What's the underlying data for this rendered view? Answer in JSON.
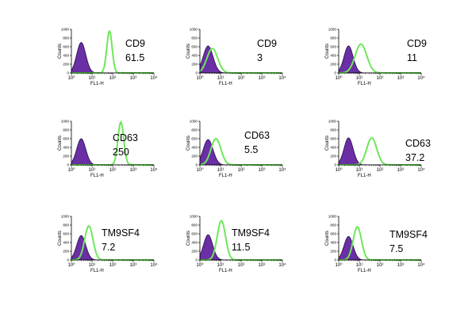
{
  "colors": {
    "isotype_fill": "#6a2fa4",
    "isotype_stroke": "#2a0d4a",
    "marker_line": "#6ee85a",
    "axis": "#000000"
  },
  "axis_text": {
    "ylabel": "Counts",
    "xlabel": "FL1-H"
  },
  "chart_data": [
    {
      "type": "histogram",
      "marker": "CD9",
      "value": "61.5",
      "x_scale": "log",
      "xlim": [
        1,
        10000
      ],
      "ylim": [
        0,
        1000
      ],
      "x_ticks": [
        "10⁰",
        "10¹",
        "10²",
        "10³",
        "10⁴"
      ],
      "y_ticks": [
        "0",
        "200",
        "400",
        "600",
        "800",
        "1000"
      ],
      "xlabel": "FL1-H",
      "ylabel": "Counts",
      "iso_peak": 3,
      "iso_height": 0.7,
      "iso_sigma": 0.22,
      "marker_peak": 70,
      "marker_height": 0.96,
      "marker_sigma": 0.13
    },
    {
      "type": "histogram",
      "marker": "CD9",
      "value": "3",
      "x_scale": "log",
      "xlim": [
        1,
        10000
      ],
      "ylim": [
        0,
        1000
      ],
      "x_ticks": [
        "10⁰",
        "10¹",
        "10²",
        "10³",
        "10⁴"
      ],
      "y_ticks": [
        "0",
        "200",
        "400",
        "600",
        "800",
        "1000"
      ],
      "xlabel": "FL1-H",
      "ylabel": "Counts",
      "iso_peak": 2.5,
      "iso_height": 0.62,
      "iso_sigma": 0.24,
      "marker_peak": 4,
      "marker_height": 0.56,
      "marker_sigma": 0.26
    },
    {
      "type": "histogram",
      "marker": "CD9",
      "value": "11",
      "x_scale": "log",
      "xlim": [
        1,
        10000
      ],
      "ylim": [
        0,
        1000
      ],
      "x_ticks": [
        "10⁰",
        "10¹",
        "10²",
        "10³",
        "10⁴"
      ],
      "y_ticks": [
        "0",
        "200",
        "400",
        "600",
        "800",
        "1000"
      ],
      "xlabel": "FL1-H",
      "ylabel": "Counts",
      "iso_peak": 3,
      "iso_height": 0.62,
      "iso_sigma": 0.22,
      "marker_peak": 12,
      "marker_height": 0.66,
      "marker_sigma": 0.28
    },
    {
      "type": "histogram",
      "marker": "CD63",
      "value": "250",
      "x_scale": "log",
      "xlim": [
        1,
        10000
      ],
      "ylim": [
        0,
        1000
      ],
      "x_ticks": [
        "10⁰",
        "10¹",
        "10²",
        "10³",
        "10⁴"
      ],
      "y_ticks": [
        "0",
        "200",
        "400",
        "600",
        "800",
        "1000"
      ],
      "xlabel": "FL1-H",
      "ylabel": "Counts",
      "iso_peak": 3,
      "iso_height": 0.6,
      "iso_sigma": 0.22,
      "marker_peak": 250,
      "marker_height": 0.98,
      "marker_sigma": 0.14
    },
    {
      "type": "histogram",
      "marker": "CD63",
      "value": "5.5",
      "x_scale": "log",
      "xlim": [
        1,
        10000
      ],
      "ylim": [
        0,
        1000
      ],
      "x_ticks": [
        "10⁰",
        "10¹",
        "10²",
        "10³",
        "10⁴"
      ],
      "y_ticks": [
        "0",
        "200",
        "400",
        "600",
        "800",
        "1000"
      ],
      "xlabel": "FL1-H",
      "ylabel": "Counts",
      "iso_peak": 2.5,
      "iso_height": 0.58,
      "iso_sigma": 0.24,
      "marker_peak": 6,
      "marker_height": 0.6,
      "marker_sigma": 0.24
    },
    {
      "type": "histogram",
      "marker": "CD63",
      "value": "37.2",
      "x_scale": "log",
      "xlim": [
        1,
        10000
      ],
      "ylim": [
        0,
        1000
      ],
      "x_ticks": [
        "10⁰",
        "10¹",
        "10²",
        "10³",
        "10⁴"
      ],
      "y_ticks": [
        "0",
        "200",
        "400",
        "600",
        "800",
        "1000"
      ],
      "xlabel": "FL1-H",
      "ylabel": "Counts",
      "iso_peak": 3,
      "iso_height": 0.62,
      "iso_sigma": 0.22,
      "marker_peak": 40,
      "marker_height": 0.62,
      "marker_sigma": 0.24
    },
    {
      "type": "histogram",
      "marker": "TM9SF4",
      "value": "7.2",
      "x_scale": "log",
      "xlim": [
        1,
        10000
      ],
      "ylim": [
        0,
        1000
      ],
      "x_ticks": [
        "10⁰",
        "10¹",
        "10²",
        "10³",
        "10⁴"
      ],
      "y_ticks": [
        "0",
        "200",
        "400",
        "600",
        "800",
        "1000"
      ],
      "xlabel": "FL1-H",
      "ylabel": "Counts",
      "iso_peak": 3,
      "iso_height": 0.56,
      "iso_sigma": 0.22,
      "marker_peak": 7,
      "marker_height": 0.78,
      "marker_sigma": 0.2
    },
    {
      "type": "histogram",
      "marker": "TM9SF4",
      "value": "11.5",
      "x_scale": "log",
      "xlim": [
        1,
        10000
      ],
      "ylim": [
        0,
        1000
      ],
      "x_ticks": [
        "10⁰",
        "10¹",
        "10²",
        "10³",
        "10⁴"
      ],
      "y_ticks": [
        "0",
        "200",
        "400",
        "600",
        "800",
        "1000"
      ],
      "xlabel": "FL1-H",
      "ylabel": "Counts",
      "iso_peak": 2.5,
      "iso_height": 0.58,
      "iso_sigma": 0.22,
      "marker_peak": 11,
      "marker_height": 0.9,
      "marker_sigma": 0.2
    },
    {
      "type": "histogram",
      "marker": "TM9SF4",
      "value": "7.5",
      "x_scale": "log",
      "xlim": [
        1,
        10000
      ],
      "ylim": [
        0,
        1000
      ],
      "x_ticks": [
        "10⁰",
        "10¹",
        "10²",
        "10³",
        "10⁴"
      ],
      "y_ticks": [
        "0",
        "200",
        "400",
        "600",
        "800",
        "1000"
      ],
      "xlabel": "FL1-H",
      "ylabel": "Counts",
      "iso_peak": 3,
      "iso_height": 0.54,
      "iso_sigma": 0.22,
      "marker_peak": 8,
      "marker_height": 0.76,
      "marker_sigma": 0.2
    }
  ]
}
